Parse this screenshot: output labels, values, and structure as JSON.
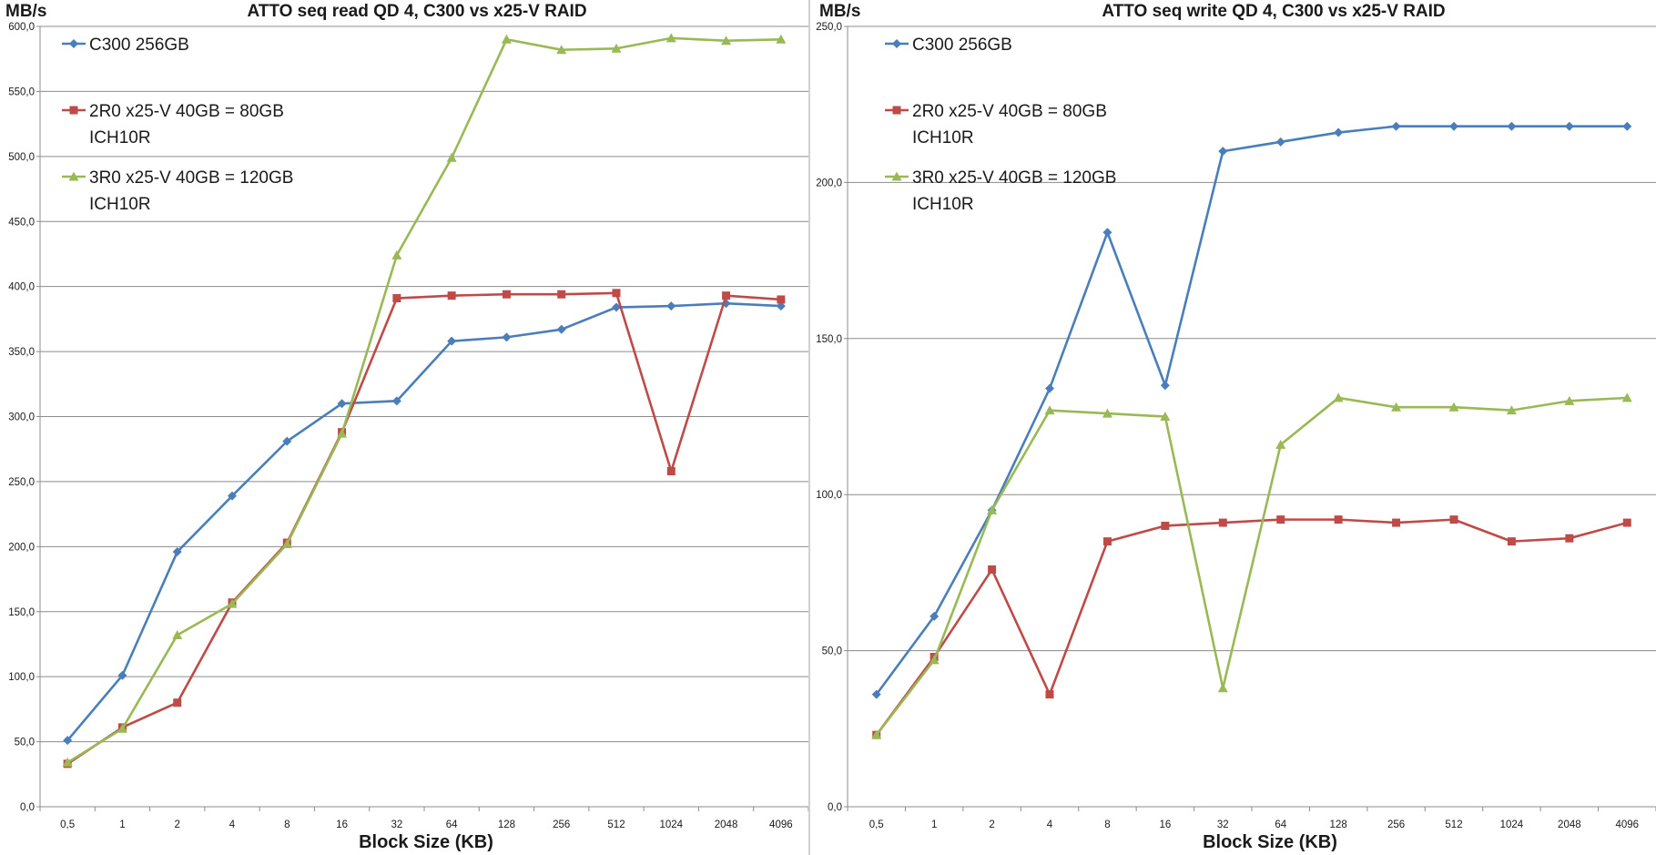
{
  "colors": {
    "series1": "#4a7ebb",
    "series2": "#be4b48",
    "series3": "#98b954",
    "grid": "#8c8c8c",
    "axis": "#8c8c8c"
  },
  "chart_data": [
    {
      "type": "line",
      "title": "ATTO seq read QD 4, C300 vs x25-V RAID",
      "ylabel": "MB/s",
      "xlabel": "Block Size (KB)",
      "categories": [
        "0,5",
        "1",
        "2",
        "4",
        "8",
        "16",
        "32",
        "64",
        "128",
        "256",
        "512",
        "1024",
        "2048",
        "4096"
      ],
      "ylim": [
        0,
        600
      ],
      "ytick_labels": [
        "0,0",
        "50,0",
        "100,0",
        "150,0",
        "200,0",
        "250,0",
        "300,0",
        "350,0",
        "400,0",
        "450,0",
        "500,0",
        "550,0",
        "600,0"
      ],
      "grid": true,
      "legend_position": "top-left",
      "series": [
        {
          "name": "C300 256GB",
          "label_lines": [
            "C300 256GB"
          ],
          "marker": "diamond",
          "values": [
            51,
            101,
            196,
            239,
            281,
            310,
            312,
            358,
            361,
            367,
            384,
            385,
            387,
            385
          ]
        },
        {
          "name": "2R0 x25-V 40GB = 80GB ICH10R",
          "label_lines": [
            "2R0 x25-V 40GB = 80GB",
            "ICH10R"
          ],
          "marker": "square",
          "values": [
            33,
            61,
            80,
            157,
            203,
            288,
            391,
            393,
            394,
            394,
            395,
            258,
            393,
            390
          ]
        },
        {
          "name": "3R0 x25-V 40GB = 120GB ICH10R",
          "label_lines": [
            "3R0 x25-V 40GB = 120GB",
            "ICH10R"
          ],
          "marker": "triangle",
          "values": [
            34,
            60,
            132,
            156,
            202,
            287,
            424,
            499,
            590,
            582,
            583,
            591,
            589,
            590
          ]
        }
      ]
    },
    {
      "type": "line",
      "title": "ATTO seq write QD 4, C300 vs x25-V RAID",
      "ylabel": "MB/s",
      "xlabel": "Block Size (KB)",
      "categories": [
        "0,5",
        "1",
        "2",
        "4",
        "8",
        "16",
        "32",
        "64",
        "128",
        "256",
        "512",
        "1024",
        "2048",
        "4096"
      ],
      "ylim": [
        0,
        250
      ],
      "ytick_labels": [
        "0,0",
        "50,0",
        "100,0",
        "150,0",
        "200,0",
        "250,0"
      ],
      "grid": true,
      "legend_position": "top-left",
      "series": [
        {
          "name": "C300 256GB",
          "label_lines": [
            "C300 256GB"
          ],
          "marker": "diamond",
          "values": [
            36,
            61,
            95,
            134,
            184,
            135,
            210,
            213,
            216,
            218,
            218,
            218,
            218,
            218
          ]
        },
        {
          "name": "2R0 x25-V 40GB = 80GB ICH10R",
          "label_lines": [
            "2R0 x25-V 40GB = 80GB",
            "ICH10R"
          ],
          "marker": "square",
          "values": [
            23,
            48,
            76,
            36,
            85,
            90,
            91,
            92,
            92,
            91,
            92,
            85,
            86,
            91
          ]
        },
        {
          "name": "3R0 x25-V 40GB = 120GB ICH10R",
          "label_lines": [
            "3R0 x25-V 40GB = 120GB",
            "ICH10R"
          ],
          "marker": "triangle",
          "values": [
            23,
            47,
            95,
            127,
            126,
            125,
            38,
            116,
            131,
            128,
            128,
            127,
            130,
            131
          ]
        }
      ]
    }
  ]
}
